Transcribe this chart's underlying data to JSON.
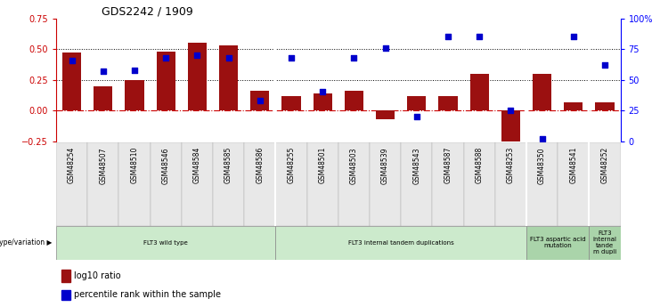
{
  "title": "GDS2242 / 1909",
  "samples": [
    "GSM48254",
    "GSM48507",
    "GSM48510",
    "GSM48546",
    "GSM48584",
    "GSM48585",
    "GSM48586",
    "GSM48255",
    "GSM48501",
    "GSM48503",
    "GSM48539",
    "GSM48543",
    "GSM48587",
    "GSM48588",
    "GSM48253",
    "GSM48350",
    "GSM48541",
    "GSM48252"
  ],
  "log10_ratio": [
    0.47,
    0.2,
    0.25,
    0.48,
    0.55,
    0.53,
    0.16,
    0.12,
    0.14,
    0.16,
    -0.07,
    0.12,
    0.12,
    0.3,
    -0.27,
    0.3,
    0.07,
    0.07
  ],
  "percentile_rank": [
    66,
    57,
    58,
    68,
    70,
    68,
    33,
    68,
    40,
    68,
    76,
    20,
    85,
    85,
    25,
    2,
    85,
    62
  ],
  "bar_color": "#9B1010",
  "dot_color": "#0000CC",
  "groups": [
    {
      "label": "FLT3 wild type",
      "start": 0,
      "end": 7
    },
    {
      "label": "FLT3 internal tandem duplications",
      "start": 7,
      "end": 15
    },
    {
      "label": "FLT3 aspartic acid\nmutation",
      "start": 15,
      "end": 17
    },
    {
      "label": "FLT3\ninternal\ntande\nm dupli",
      "start": 17,
      "end": 18
    }
  ],
  "group_colors": [
    "#cceacc",
    "#cceacc",
    "#aad4aa",
    "#aad4aa"
  ],
  "yticks_left": [
    -0.25,
    0,
    0.25,
    0.5,
    0.75
  ],
  "yticks_right": [
    0,
    25,
    50,
    75,
    100
  ],
  "ytick_right_labels": [
    "0",
    "25",
    "50",
    "75",
    "100%"
  ],
  "dotted_lines": [
    0.25,
    0.5
  ],
  "legend_label1": "log10 ratio",
  "legend_label2": "percentile rank within the sample",
  "genotype_label": "genotype/variation ▶"
}
